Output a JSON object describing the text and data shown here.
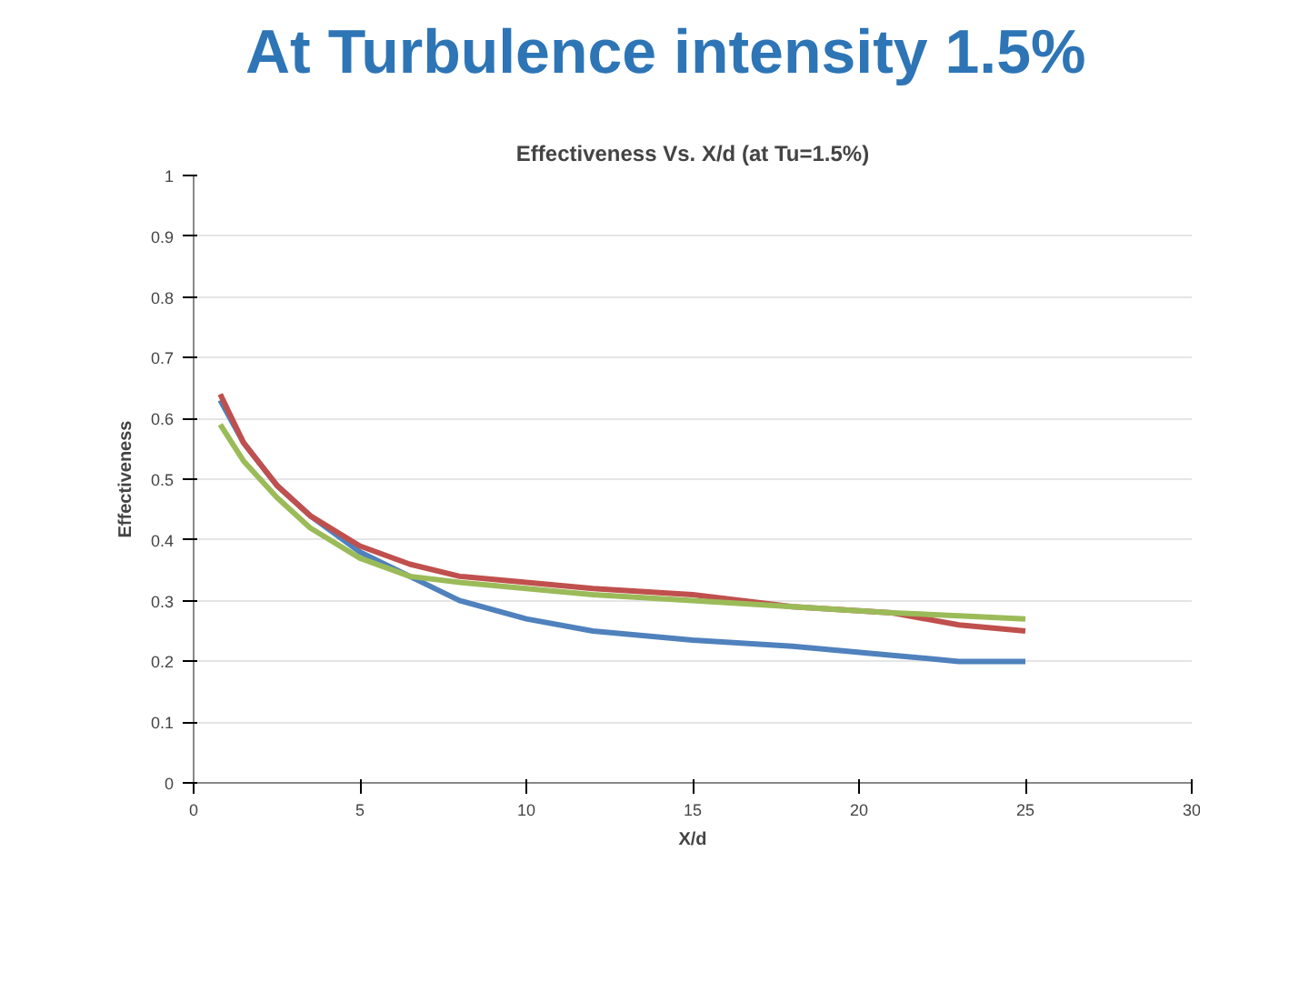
{
  "chart_data": {
    "type": "line",
    "title": "At Turbulence intensity 1.5%",
    "subtitle": "Effectiveness Vs. X/d (at Tu=1.5%)",
    "xlabel": "X/d",
    "ylabel": "Effectiveness",
    "xlim": [
      0,
      30
    ],
    "xticks": [
      0,
      5,
      10,
      15,
      20,
      25,
      30
    ],
    "ylim": [
      0,
      1
    ],
    "yticks": [
      0,
      0.1,
      0.2,
      0.3,
      0.4,
      0.5,
      0.6,
      0.7,
      0.8,
      0.9,
      1
    ],
    "grid": "y",
    "x": [
      0.8,
      1.5,
      2.5,
      3.5,
      5,
      6.5,
      8,
      10,
      12,
      15,
      18,
      21,
      23,
      25
    ],
    "series": [
      {
        "color": "#4f81bd",
        "values": [
          0.63,
          0.56,
          0.49,
          0.44,
          0.38,
          0.34,
          0.3,
          0.27,
          0.25,
          0.235,
          0.225,
          0.21,
          0.2,
          0.2
        ]
      },
      {
        "color": "#c0504d",
        "values": [
          0.64,
          0.56,
          0.49,
          0.44,
          0.39,
          0.36,
          0.34,
          0.33,
          0.32,
          0.31,
          0.29,
          0.28,
          0.26,
          0.25
        ]
      },
      {
        "color": "#9bbb59",
        "values": [
          0.59,
          0.53,
          0.47,
          0.42,
          0.37,
          0.34,
          0.33,
          0.32,
          0.31,
          0.3,
          0.29,
          0.28,
          0.275,
          0.27
        ]
      }
    ]
  }
}
